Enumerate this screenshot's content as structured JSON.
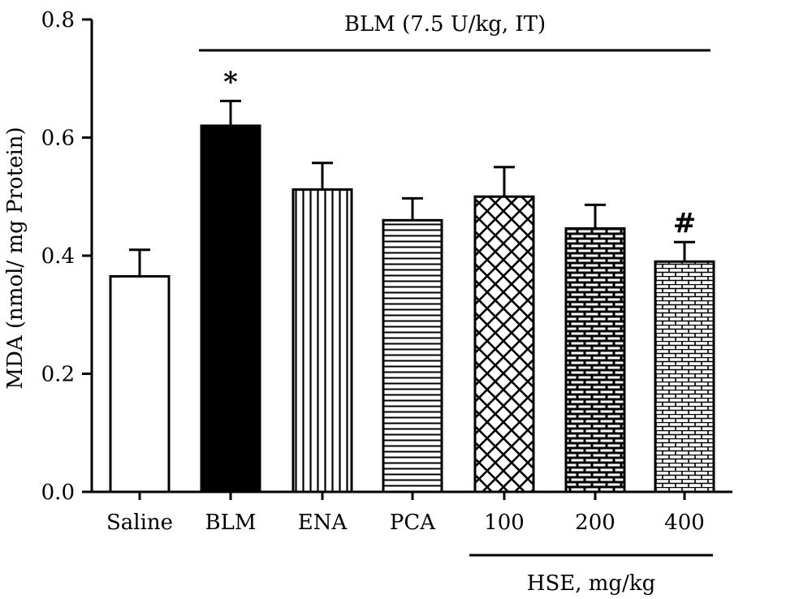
{
  "chart_data": {
    "type": "bar",
    "ylabel": "MDA (nmol/ mg Protein)",
    "ylim": [
      0,
      0.8
    ],
    "yticks": [
      "0.0",
      "0.2",
      "0.4",
      "0.6",
      "0.8"
    ],
    "categories": [
      "Saline",
      "BLM",
      "ENA",
      "PCA",
      "100",
      "200",
      "400"
    ],
    "values": [
      0.365,
      0.62,
      0.512,
      0.46,
      0.5,
      0.446,
      0.39
    ],
    "errors": [
      0.045,
      0.042,
      0.045,
      0.037,
      0.05,
      0.04,
      0.033
    ],
    "patterns": [
      "white",
      "solid-black",
      "vertical-lines",
      "horizontal-lines",
      "crosshatch",
      "brick-dark",
      "brick-light"
    ],
    "significance": [
      "",
      "*",
      "",
      "",
      "",
      "",
      "#"
    ],
    "top_bracket_label": "BLM (7.5 U/kg, IT)",
    "bottom_bracket_label": "HSE, mg/kg",
    "colors": {
      "bars": "#000000",
      "background": "#ffffff"
    }
  }
}
